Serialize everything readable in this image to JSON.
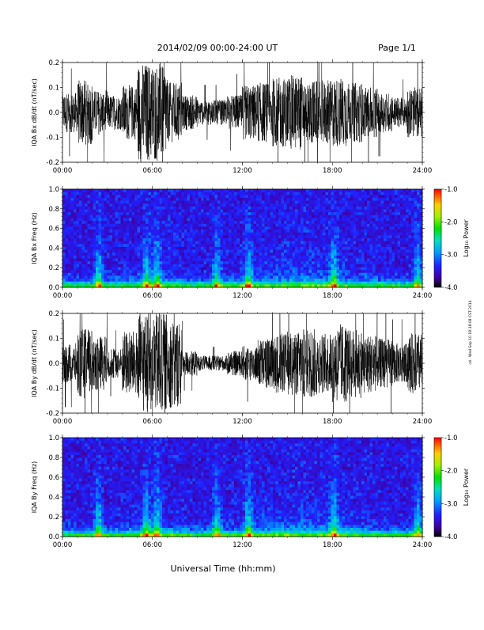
{
  "header": {
    "title": "2014/02/09  00:00-24:00 UT",
    "page": "Page 1/1"
  },
  "footer": {
    "x_title": "Universal Time (hh:mm)",
    "stamp": "cd · Wed Sep 10 18:38:08 CST 2014"
  },
  "chart_data": [
    {
      "type": "line",
      "ylabel": "IQA Bx dB/dt (nT/sec)",
      "x": [
        "00:00",
        "06:00",
        "12:00",
        "18:00",
        "24:00"
      ],
      "xlim": [
        0,
        24
      ],
      "ylim": [
        -0.2,
        0.2
      ],
      "yticks": [
        "0.2",
        "0.1",
        "0.0",
        "-0.1",
        "-0.2"
      ],
      "series": [
        {
          "values_hourly_amplitude": [
            0.08,
            0.13,
            0.09,
            0.07,
            0.11,
            0.2,
            0.2,
            0.12,
            0.07,
            0.05,
            0.05,
            0.07,
            0.11,
            0.12,
            0.14,
            0.15,
            0.13,
            0.13,
            0.14,
            0.12,
            0.1,
            0.08,
            0.06,
            0.1
          ]
        }
      ]
    },
    {
      "type": "heatmap",
      "ylabel": "IQA Bx Freq (Hz)",
      "x": [
        "00:00",
        "06:00",
        "12:00",
        "18:00",
        "24:00"
      ],
      "xlim": [
        0,
        24
      ],
      "ylim": [
        0,
        1
      ],
      "yticks": [
        "1.0",
        "0.8",
        "0.6",
        "0.4",
        "0.2",
        "0.0"
      ],
      "colorbar": {
        "label": "Log₁₀ Power",
        "range": [
          -4,
          -1
        ],
        "ticks": [
          "-1.0",
          "-2.0",
          "-3.0",
          "-4.0"
        ]
      }
    },
    {
      "type": "line",
      "ylabel": "IQA By dB/dt (nT/sec)",
      "x": [
        "00:00",
        "06:00",
        "12:00",
        "18:00",
        "24:00"
      ],
      "xlim": [
        0,
        24
      ],
      "ylim": [
        -0.2,
        0.2
      ],
      "yticks": [
        "0.2",
        "0.1",
        "0.0",
        "-0.1",
        "-0.2"
      ],
      "series": [
        {
          "values_hourly_amplitude": [
            0.08,
            0.14,
            0.11,
            0.06,
            0.13,
            0.2,
            0.2,
            0.18,
            0.05,
            0.03,
            0.03,
            0.05,
            0.07,
            0.1,
            0.12,
            0.13,
            0.14,
            0.12,
            0.16,
            0.14,
            0.12,
            0.1,
            0.08,
            0.12
          ]
        }
      ]
    },
    {
      "type": "heatmap",
      "ylabel": "IQA By Freq (Hz)",
      "x": [
        "00:00",
        "06:00",
        "12:00",
        "18:00",
        "24:00"
      ],
      "xlim": [
        0,
        24
      ],
      "ylim": [
        0,
        1
      ],
      "yticks": [
        "1.0",
        "0.8",
        "0.6",
        "0.4",
        "0.2",
        "0.0"
      ],
      "colorbar": {
        "label": "Log₁₀ Power",
        "range": [
          -4,
          -1
        ],
        "ticks": [
          "-1.0",
          "-2.0",
          "-3.0",
          "-4.0"
        ]
      }
    }
  ]
}
